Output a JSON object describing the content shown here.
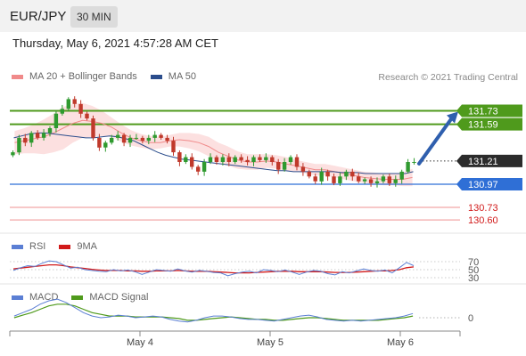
{
  "header": {
    "pair": "EUR/JPY",
    "timeframe": "30 MIN"
  },
  "timestamp": "Thursday, May 6, 2021 4:57:28 AM CET",
  "credit": "Research ",
  "credit_year": "© 2021 Trading Central",
  "legend_main": [
    {
      "label": "MA 20 + Bollinger Bands",
      "color": "#f08a8a"
    },
    {
      "label": "MA 50",
      "color": "#2b4d8c"
    }
  ],
  "legend_rsi": [
    {
      "label": "RSI",
      "color": "#5b7fd4"
    },
    {
      "label": "9MA",
      "color": "#d11a1a"
    }
  ],
  "legend_macd": [
    {
      "label": "MACD",
      "color": "#5b7fd4"
    },
    {
      "label": "MACD Signal",
      "color": "#4f9a1c"
    }
  ],
  "chart_data": {
    "type": "candlestick",
    "ylim": [
      130.5,
      131.9
    ],
    "x_ticks": [
      "May 4",
      "May 5",
      "May 6"
    ],
    "close": [
      131.3,
      131.45,
      131.4,
      131.5,
      131.45,
      131.5,
      131.55,
      131.7,
      131.75,
      131.85,
      131.8,
      131.7,
      131.65,
      131.45,
      131.35,
      131.4,
      131.45,
      131.48,
      131.4,
      131.45,
      131.45,
      131.42,
      131.45,
      131.48,
      131.45,
      131.42,
      131.3,
      131.2,
      131.25,
      131.15,
      131.1,
      131.2,
      131.25,
      131.2,
      131.25,
      131.2,
      131.25,
      131.22,
      131.2,
      131.25,
      131.22,
      131.25,
      131.2,
      131.12,
      131.2,
      131.25,
      131.15,
      131.1,
      131.05,
      131.0,
      131.1,
      131.05,
      130.98,
      131.05,
      131.1,
      131.05,
      131.0,
      131.02,
      130.98,
      131.0,
      131.05,
      130.98,
      131.02,
      131.1,
      131.2,
      131.2
    ],
    "ma20": [
      131.4,
      131.42,
      131.44,
      131.46,
      131.5,
      131.55,
      131.6,
      131.63,
      131.62,
      131.6,
      131.56,
      131.5,
      131.45,
      131.42,
      131.4,
      131.4,
      131.42,
      131.43,
      131.42,
      131.4,
      131.36,
      131.3,
      131.26,
      131.22,
      131.2,
      131.2,
      131.21,
      131.2,
      131.18,
      131.16,
      131.14,
      131.12,
      131.12,
      131.1,
      131.08,
      131.06,
      131.04,
      131.03,
      131.02,
      131.02,
      131.02,
      131.04
    ],
    "ma50": [
      131.45,
      131.47,
      131.49,
      131.5,
      131.5,
      131.49,
      131.48,
      131.47,
      131.46,
      131.45,
      131.45,
      131.46,
      131.47,
      131.46,
      131.44,
      131.42,
      131.38,
      131.34,
      131.3,
      131.27,
      131.25,
      131.23,
      131.22,
      131.21,
      131.2,
      131.19,
      131.18,
      131.17,
      131.16,
      131.15,
      131.14,
      131.13,
      131.12,
      131.11,
      131.11,
      131.1,
      131.1,
      131.1,
      131.1,
      131.1,
      131.1,
      131.09,
      131.09,
      131.09,
      131.08,
      131.08,
      131.08,
      131.08,
      131.08,
      131.08,
      131.1
    ],
    "rsi": [
      48,
      55,
      60,
      58,
      66,
      72,
      70,
      62,
      54,
      56,
      50,
      48,
      46,
      45,
      50,
      47,
      49,
      45,
      38,
      44,
      50,
      48,
      46,
      52,
      47,
      44,
      48,
      46,
      43,
      42,
      35,
      40,
      44,
      46,
      42,
      50,
      48,
      45,
      49,
      44,
      38,
      44,
      48,
      46,
      40,
      37,
      45,
      42,
      47,
      52,
      48,
      46,
      49,
      42,
      55,
      68,
      60
    ],
    "rsi_ma": [
      52,
      54,
      56,
      58,
      60,
      62,
      62,
      60,
      57,
      55,
      53,
      51,
      49,
      48,
      48,
      48,
      47,
      47,
      46,
      46,
      47,
      47,
      47,
      48,
      47,
      46,
      46,
      46,
      45,
      44,
      43,
      42,
      42,
      42,
      43,
      44,
      45,
      46,
      46,
      46,
      45,
      45,
      45,
      45,
      44,
      43,
      43,
      43,
      44,
      45,
      46,
      47,
      47,
      48,
      50,
      55,
      57
    ],
    "rsi_levels": [
      70,
      50,
      30
    ],
    "macd": [
      0.02,
      0.06,
      0.1,
      0.16,
      0.2,
      0.22,
      0.18,
      0.12,
      0.06,
      0.02,
      0.0,
      0.01,
      0.03,
      0.02,
      0.0,
      0.01,
      0.02,
      0.01,
      -0.02,
      -0.04,
      -0.05,
      -0.03,
      0.0,
      0.02,
      0.02,
      0.01,
      -0.01,
      -0.02,
      -0.02,
      -0.03,
      -0.04,
      -0.02,
      0.0,
      0.02,
      0.03,
      0.01,
      -0.02,
      -0.03,
      -0.04,
      -0.03,
      -0.04,
      -0.03,
      -0.02,
      -0.01,
      0.0,
      0.02,
      0.05
    ],
    "macd_signal": [
      0.0,
      0.03,
      0.06,
      0.1,
      0.14,
      0.16,
      0.16,
      0.14,
      0.1,
      0.06,
      0.04,
      0.02,
      0.02,
      0.02,
      0.01,
      0.01,
      0.01,
      0.01,
      0.0,
      -0.01,
      -0.03,
      -0.03,
      -0.02,
      -0.01,
      0.0,
      0.01,
      0.0,
      -0.01,
      -0.02,
      -0.02,
      -0.03,
      -0.03,
      -0.02,
      -0.01,
      0.0,
      0.0,
      -0.01,
      -0.02,
      -0.03,
      -0.03,
      -0.03,
      -0.03,
      -0.03,
      -0.02,
      -0.01,
      0.0,
      0.02
    ],
    "macd_zero_label": "0",
    "levels": [
      {
        "value": 131.73,
        "label": "131.73",
        "kind": "resistance",
        "color": "#4f9a1c",
        "labelColor": "#4f9a1c",
        "textColor": "#ffffff"
      },
      {
        "value": 131.59,
        "label": "131.59",
        "kind": "resistance",
        "color": "#4f9a1c",
        "labelColor": "#4f9a1c",
        "textColor": "#ffffff"
      },
      {
        "value": 131.21,
        "label": "131.21",
        "kind": "current",
        "color": "#333333",
        "labelColor": "#2b2b2b",
        "textColor": "#ffffff"
      },
      {
        "value": 130.97,
        "label": "130.97",
        "kind": "pivot",
        "color": "#2f6fd6",
        "labelColor": "#2f6fd6",
        "textColor": "#ffffff"
      },
      {
        "value": 130.73,
        "label": "130.73",
        "kind": "support",
        "color": "#f2a7a7",
        "labelColor": "",
        "textColor": "#d11a1a"
      },
      {
        "value": 130.6,
        "label": "130.60",
        "kind": "support",
        "color": "#f2a7a7",
        "labelColor": "",
        "textColor": "#d11a1a"
      }
    ],
    "arrow": {
      "from": 131.21,
      "to": 131.73,
      "color": "#2f5fae"
    }
  }
}
